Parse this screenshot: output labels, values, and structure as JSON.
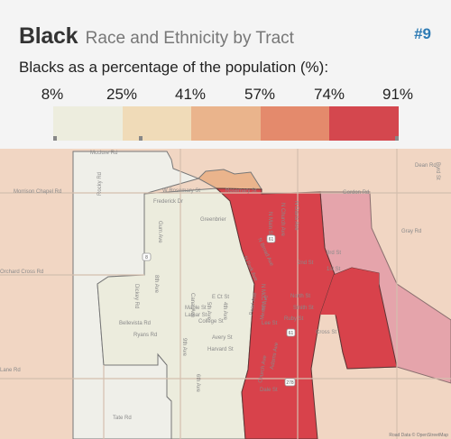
{
  "header": {
    "title": "Black",
    "subtitle": "Race and Ethnicity by Tract",
    "badge": "#9",
    "legend_caption": "Blacks as a percentage of the population (%):"
  },
  "legend": {
    "labels": [
      "8%",
      "25%",
      "41%",
      "57%",
      "74%",
      "91%"
    ],
    "colors": [
      "#ededde",
      "#f0dbb8",
      "#eab48c",
      "#e48a6c",
      "#d4474e"
    ]
  },
  "map": {
    "colors": {
      "background": "#f1d6c3",
      "light_gray": "#ececdd",
      "white_tract": "#efefe9",
      "red": "#d8424b",
      "pink": "#e5a4ab",
      "orange_patch": "#eab48c"
    },
    "roads": {
      "w_rosemary": "W Rosemary St",
      "rosemary_st": "Rosemary St",
      "frederick": "Frederick Dr",
      "gum": "Gum Ave",
      "greenbrier": "Greenbrier",
      "morrison": "Morrison Chapel Rd",
      "bellevista": "Bellevista Rd",
      "ryans": "Ryans Rd",
      "canal": "Canal Ave",
      "maple": "Maple St",
      "lamar": "Lamar St",
      "college": "College St",
      "avery": "Avery St",
      "harvard": "Harvard St",
      "e_ct": "E Ct St",
      "ave_8th": "8th Ave",
      "ave_9th": "9th Ave",
      "ave_6th": "6th Ave",
      "ave_5th": "5th Ave",
      "ave_4th": "4th Ave",
      "n_park": "N Park Ave",
      "n_broad": "N Broad Ave",
      "n_main": "N Main St",
      "n_church": "N Church Ave",
      "n_davis": "N Davis Ave",
      "pearl": "Pearl Ave",
      "merrill": "Merrill Ave",
      "adams": "Adams Ave",
      "church_ave": "Church Ave",
      "mcc": "N McC Ave",
      "second": "2nd St",
      "third": "3rd St",
      "first": "1st St",
      "north": "North St",
      "smith": "Smith St",
      "lee": "Lee St",
      "ruby": "Ruby St",
      "cross": "Cross St",
      "dale": "Dale St",
      "orchard": "Orchard Cross Rd",
      "rocky": "Rocky Rd",
      "gordon": "Gordon Rd",
      "dickey": "Dickey Rd",
      "tate": "Tate Rd",
      "gray": "Gray Rd",
      "mcclure": "Mcclure Rd",
      "byrd": "Byrd St",
      "lane": "Lane Rd",
      "dean": "Dean Rd",
      "hwy61": "61",
      "hwy8": "8",
      "hwy278": "278",
      "hwy61b": "61"
    },
    "attribution": "Road Data © OpenStreetMap"
  }
}
